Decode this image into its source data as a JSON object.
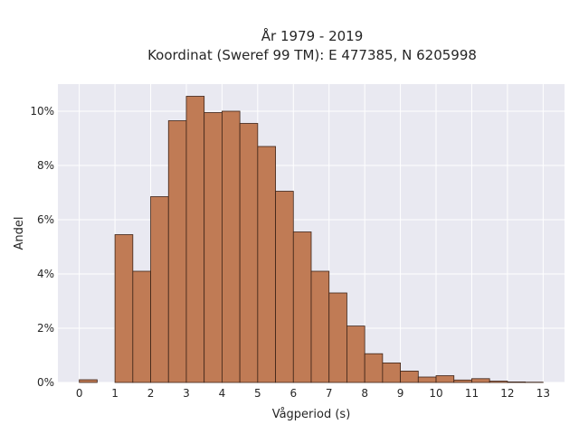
{
  "chart_data": {
    "type": "bar",
    "title": "År 1979 - 2019",
    "subtitle": "Koordinat (Sweref 99 TM): E 477385, N 6205998",
    "xlabel": "Vågperiod (s)",
    "ylabel": "Andel",
    "bin_width": 0.5,
    "bin_starts": [
      0,
      0.5,
      1,
      1.5,
      2,
      2.5,
      3,
      3.5,
      4,
      4.5,
      5,
      5.5,
      6,
      6.5,
      7,
      7.5,
      8,
      8.5,
      9,
      9.5,
      10,
      10.5,
      11,
      11.5,
      12,
      12.5
    ],
    "values": [
      0.1,
      0,
      5.45,
      4.1,
      6.85,
      9.65,
      10.55,
      9.95,
      10.0,
      9.55,
      8.7,
      7.05,
      5.55,
      4.1,
      3.3,
      2.08,
      1.06,
      0.72,
      0.42,
      0.2,
      0.25,
      0.09,
      0.14,
      0.05,
      0.02,
      0.01
    ],
    "value_unit": "%",
    "xlim": [
      -0.6,
      13.6
    ],
    "ylim": [
      0,
      11.0
    ],
    "xticks": [
      0,
      1,
      2,
      3,
      4,
      5,
      6,
      7,
      8,
      9,
      10,
      11,
      12,
      13
    ],
    "yticks": [
      0,
      2,
      4,
      6,
      8,
      10
    ],
    "ytick_labels": [
      "0%",
      "2%",
      "4%",
      "6%",
      "8%",
      "10%"
    ],
    "grid": true,
    "bar_color": "#c07b55",
    "edge_color": "#3d2418",
    "background_color": "#e9e9f1"
  }
}
